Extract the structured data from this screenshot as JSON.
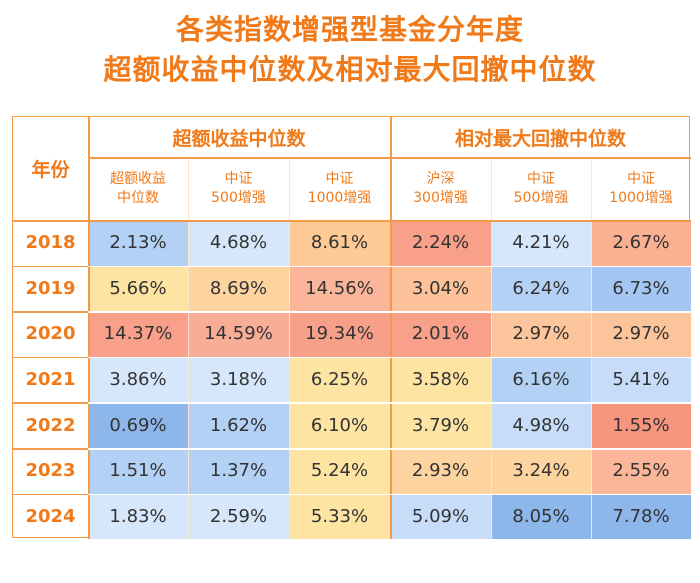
{
  "title": {
    "line1": "各类指数增强型基金分年度",
    "line2": "超额收益中位数及相对最大回撤中位数"
  },
  "table": {
    "year_header": "年份",
    "groups": [
      "超额收益中位数",
      "相对最大回撤中位数"
    ],
    "subheaders": [
      "超额收益\n中位数",
      "中证\n500增强",
      "中证\n1000增强",
      "沪深\n300增强",
      "中证\n500增强",
      "中证\n1000增强"
    ],
    "rows": [
      {
        "year": "2018",
        "values": [
          "2.13%",
          "4.68%",
          "8.61%",
          "2.24%",
          "4.21%",
          "2.67%"
        ],
        "colors": [
          "#b3d1f5",
          "#d6e7fb",
          "#fdc994",
          "#f8a08a",
          "#d6e7fb",
          "#fbb091"
        ]
      },
      {
        "year": "2019",
        "values": [
          "5.66%",
          "8.69%",
          "14.56%",
          "3.04%",
          "6.24%",
          "6.73%"
        ],
        "colors": [
          "#fde4a3",
          "#fdd4a0",
          "#fab59b",
          "#fdc299",
          "#b3d1f5",
          "#a4c6f2"
        ]
      },
      {
        "year": "2020",
        "values": [
          "14.37%",
          "14.59%",
          "19.34%",
          "2.01%",
          "2.97%",
          "2.97%"
        ],
        "colors": [
          "#f8a08a",
          "#f8ae96",
          "#f6a08a",
          "#f8a08a",
          "#fcc59c",
          "#fbc49b"
        ]
      },
      {
        "year": "2021",
        "values": [
          "3.86%",
          "3.18%",
          "6.25%",
          "3.58%",
          "6.16%",
          "5.41%"
        ],
        "colors": [
          "#d6e7fb",
          "#d6e7fb",
          "#fde4a3",
          "#fde4a3",
          "#b3d1f5",
          "#c6dcf8"
        ]
      },
      {
        "year": "2022",
        "values": [
          "0.69%",
          "1.62%",
          "6.10%",
          "3.79%",
          "4.98%",
          "1.55%"
        ],
        "colors": [
          "#8db6ea",
          "#b3d1f5",
          "#fde4a3",
          "#fde4a3",
          "#c6dcf8",
          "#f8957e"
        ]
      },
      {
        "year": "2023",
        "values": [
          "1.51%",
          "1.37%",
          "5.24%",
          "2.93%",
          "3.24%",
          "2.55%"
        ],
        "colors": [
          "#b3d1f5",
          "#b3d1f5",
          "#fde4a3",
          "#fdd4a0",
          "#fdd4a0",
          "#fbb699"
        ]
      },
      {
        "year": "2024",
        "values": [
          "1.83%",
          "2.59%",
          "5.33%",
          "5.09%",
          "8.05%",
          "7.78%"
        ],
        "colors": [
          "#d6e7fb",
          "#d6e7fb",
          "#fde4a3",
          "#c6dcf8",
          "#8db6ea",
          "#8db6ea"
        ]
      }
    ],
    "colors": {
      "accent": "#f07a1a",
      "border": "#f39a4a"
    }
  }
}
